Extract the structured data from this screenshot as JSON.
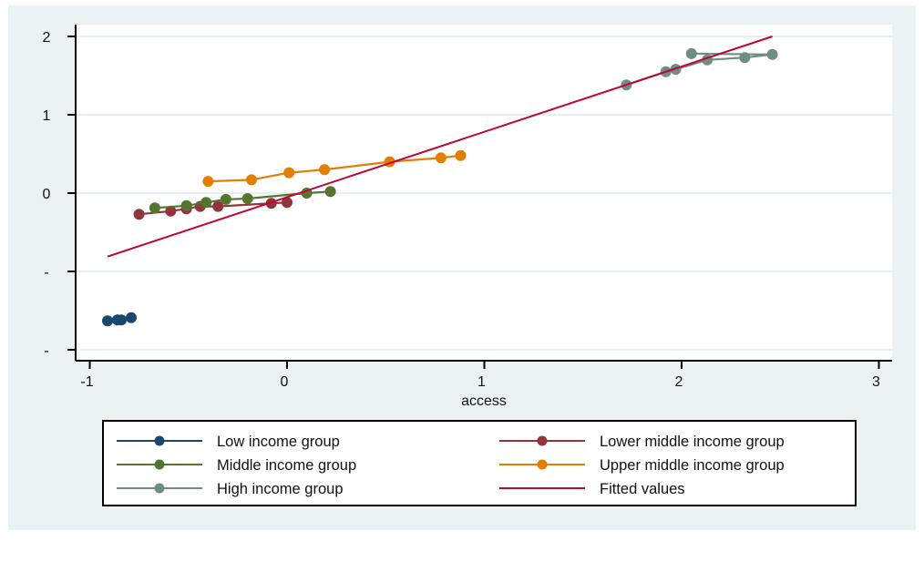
{
  "chart_data": {
    "type": "line",
    "title": "",
    "xlabel": "access",
    "ylabel": "",
    "xlim": [
      -1.05,
      3.07
    ],
    "ylim": [
      -2.2,
      2.15
    ],
    "x_ticks": [
      {
        "value": -1,
        "label": "-1"
      },
      {
        "value": 0,
        "label": "0"
      },
      {
        "value": 1,
        "label": "1"
      },
      {
        "value": 2,
        "label": "2"
      },
      {
        "value": 3,
        "label": "3"
      }
    ],
    "y_ticks": [
      {
        "value": 2,
        "label": "2"
      },
      {
        "value": 1,
        "label": "1"
      },
      {
        "value": 0,
        "label": "0"
      },
      {
        "value": -1,
        "label": "-"
      },
      {
        "value": -2,
        "label": "-"
      }
    ],
    "grid": true,
    "legend_position": "bottom",
    "series": [
      {
        "name": "Low income group",
        "color": "#1a476f",
        "marker": true,
        "points": [
          [
            -0.91,
            -1.63
          ],
          [
            -0.86,
            -1.62
          ],
          [
            -0.84,
            -1.62
          ],
          [
            -0.79,
            -1.59
          ]
        ]
      },
      {
        "name": "Lower middle income group",
        "color": "#90353b",
        "marker": true,
        "points": [
          [
            -0.75,
            -0.27
          ],
          [
            -0.59,
            -0.23
          ],
          [
            -0.51,
            -0.2
          ],
          [
            -0.44,
            -0.17
          ],
          [
            -0.35,
            -0.17
          ],
          [
            -0.08,
            -0.13
          ],
          [
            0.0,
            -0.12
          ]
        ]
      },
      {
        "name": "Middle income group",
        "color": "#55752f",
        "marker": true,
        "points": [
          [
            -0.67,
            -0.19
          ],
          [
            -0.51,
            -0.16
          ],
          [
            -0.41,
            -0.12
          ],
          [
            -0.31,
            -0.08
          ],
          [
            -0.2,
            -0.07
          ],
          [
            0.1,
            0.0
          ],
          [
            0.22,
            0.02
          ]
        ]
      },
      {
        "name": "Upper middle income group",
        "color": "#e37e00",
        "marker": true,
        "points": [
          [
            -0.4,
            0.15
          ],
          [
            -0.18,
            0.17
          ],
          [
            0.01,
            0.26
          ],
          [
            0.19,
            0.3
          ],
          [
            0.52,
            0.4
          ],
          [
            0.78,
            0.45
          ],
          [
            0.88,
            0.48
          ]
        ]
      },
      {
        "name": "High income group",
        "color": "#6e8e84",
        "marker": true,
        "points": [
          [
            1.72,
            1.38
          ],
          [
            1.92,
            1.55
          ],
          [
            1.97,
            1.58
          ],
          [
            2.13,
            1.7
          ],
          [
            2.32,
            1.73
          ],
          [
            2.46,
            1.77
          ],
          [
            2.05,
            1.78
          ]
        ]
      },
      {
        "name": "Fitted values",
        "color": "#c10534",
        "marker": false,
        "points": [
          [
            -0.91,
            -0.81
          ],
          [
            2.46,
            2.0
          ]
        ]
      }
    ],
    "legend_order": [
      0,
      1,
      2,
      3,
      4,
      5
    ]
  }
}
